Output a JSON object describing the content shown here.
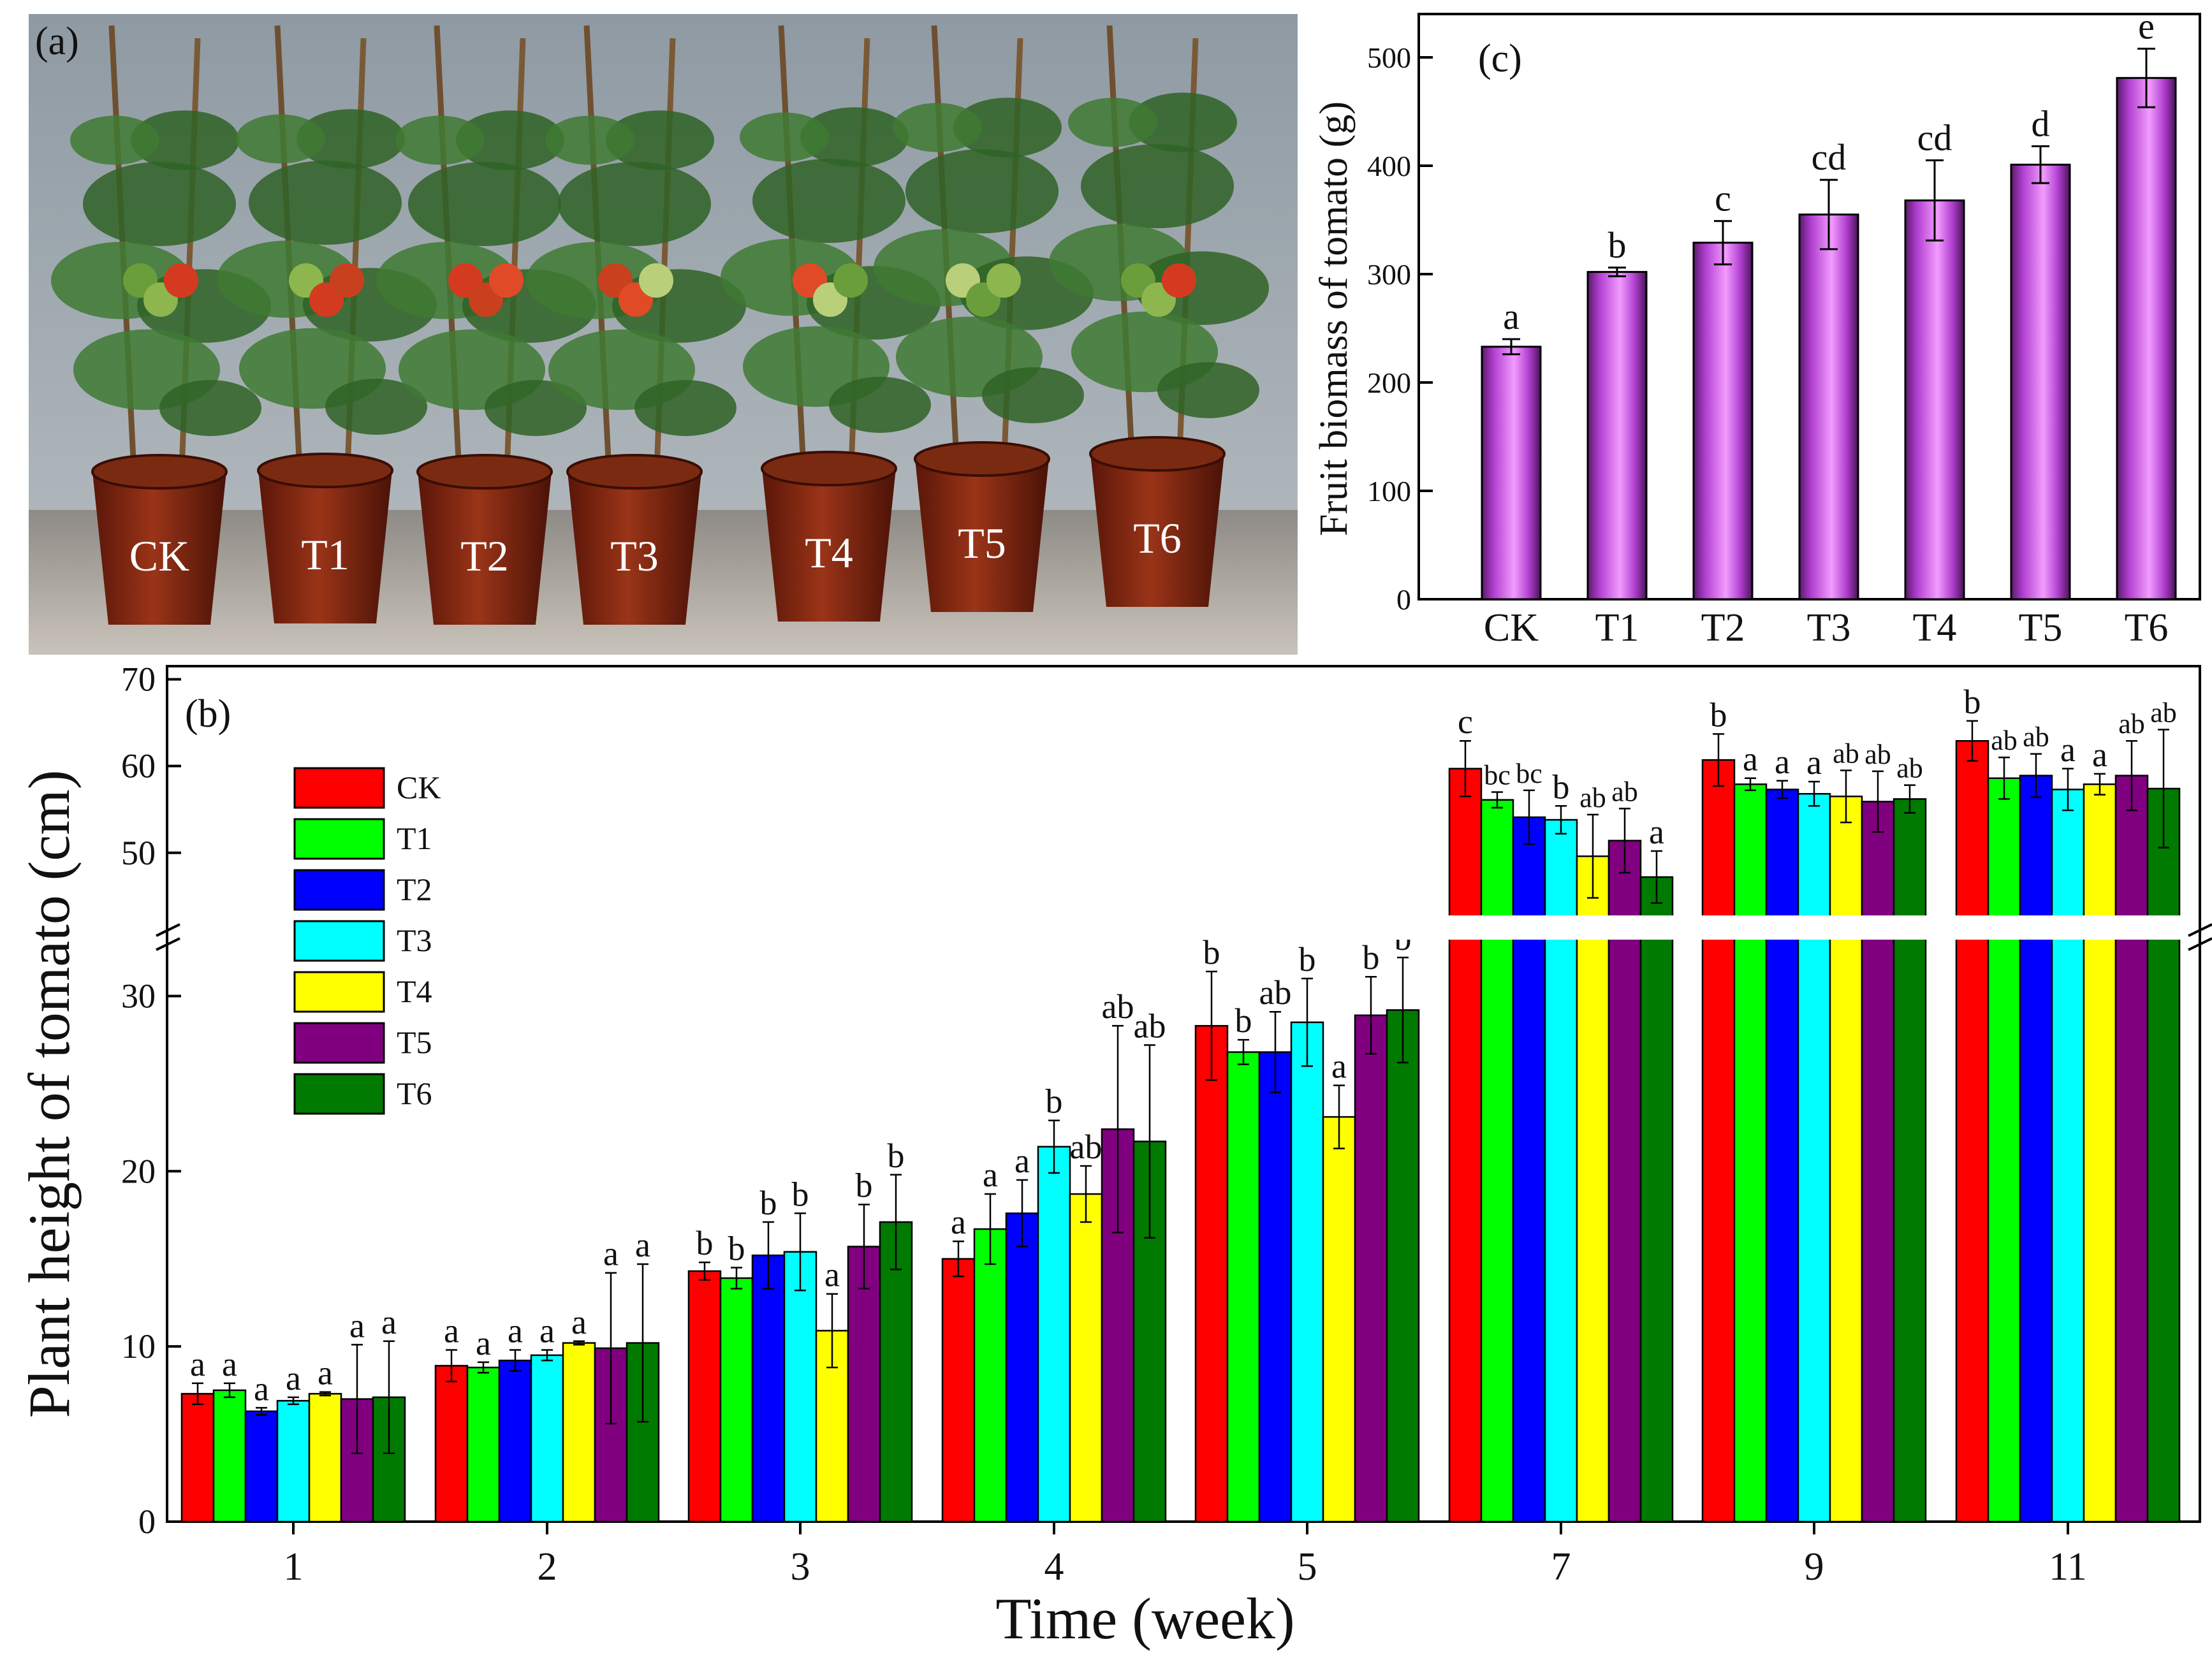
{
  "panels": {
    "a_label": "(a)",
    "b_label": "(b)",
    "c_label": "(c)"
  },
  "photo": {
    "pot_labels": [
      "CK",
      "T1",
      "T2",
      "T3",
      "T4",
      "T5",
      "T6"
    ]
  },
  "colors": {
    "CK": "#ff0000",
    "T1": "#00ff00",
    "T2": "#0000ff",
    "T3": "#00ffff",
    "T4": "#ffff00",
    "T5": "#800080",
    "T6": "#007a00",
    "biomass_bar": "#d65cf5"
  },
  "chart_data": [
    {
      "type": "bar",
      "id": "c",
      "title": "",
      "xlabel": "",
      "ylabel": "Fruit biomass of tomato (g)",
      "categories": [
        "CK",
        "T1",
        "T2",
        "T3",
        "T4",
        "T5",
        "T6"
      ],
      "values": [
        233,
        302,
        329,
        355,
        368,
        401,
        481
      ],
      "errors": [
        7,
        4,
        20,
        32,
        37,
        17,
        27
      ],
      "significance": [
        "a",
        "b",
        "c",
        "cd",
        "cd",
        "d",
        "e"
      ],
      "ylim": [
        0,
        540
      ],
      "yticks": [
        0,
        100,
        200,
        300,
        400,
        500
      ]
    },
    {
      "type": "bar",
      "id": "b",
      "title": "",
      "xlabel": "Time (week)",
      "ylabel": "Plant height of tomato (cm)",
      "categories": [
        "1",
        "2",
        "3",
        "4",
        "5",
        "7",
        "9",
        "11"
      ],
      "axis_break": {
        "lower_range": [
          0,
          33
        ],
        "upper_range": [
          43,
          71
        ]
      },
      "lower_yticks": [
        0,
        10,
        20,
        30
      ],
      "upper_yticks": [
        50,
        60,
        70
      ],
      "legend": [
        "CK",
        "T1",
        "T2",
        "T3",
        "T4",
        "T5",
        "T6"
      ],
      "series": [
        {
          "name": "CK",
          "values": [
            7.3,
            8.9,
            14.3,
            15.0,
            28.3,
            59.7,
            60.7,
            62.9
          ],
          "errors": [
            0.6,
            0.9,
            0.5,
            1.0,
            3.1,
            3.2,
            3.0,
            2.3
          ],
          "significance": [
            "a",
            "a",
            "b",
            "a",
            "b",
            "c",
            "b",
            "b"
          ]
        },
        {
          "name": "T1",
          "values": [
            7.5,
            8.8,
            13.9,
            16.7,
            26.8,
            56.1,
            57.9,
            58.6
          ],
          "errors": [
            0.4,
            0.3,
            0.6,
            2.0,
            0.7,
            0.9,
            0.7,
            2.4
          ],
          "significance": [
            "a",
            "a",
            "b",
            "a",
            "b",
            "bc",
            "a",
            "ab"
          ]
        },
        {
          "name": "T2",
          "values": [
            6.3,
            9.2,
            15.2,
            17.6,
            26.8,
            54.1,
            57.3,
            58.9
          ],
          "errors": [
            0.2,
            0.6,
            1.9,
            1.9,
            2.3,
            3.1,
            1.0,
            2.5
          ],
          "significance": [
            "a",
            "a",
            "b",
            "a",
            "ab",
            "bc",
            "a",
            "ab"
          ]
        },
        {
          "name": "T3",
          "values": [
            6.9,
            9.5,
            15.4,
            21.4,
            28.5,
            53.8,
            56.8,
            57.3
          ],
          "errors": [
            0.2,
            0.3,
            2.2,
            1.5,
            2.5,
            1.6,
            1.4,
            2.4
          ],
          "significance": [
            "a",
            "a",
            "b",
            "b",
            "b",
            "b",
            "a",
            "a"
          ]
        },
        {
          "name": "T4",
          "values": [
            7.3,
            10.2,
            10.9,
            18.7,
            23.1,
            49.6,
            56.5,
            57.9
          ],
          "errors": [
            0.1,
            0.1,
            2.1,
            1.6,
            1.8,
            4.8,
            3.0,
            1.2
          ],
          "significance": [
            "a",
            "a",
            "a",
            "ab",
            "a",
            "ab",
            "ab",
            "a"
          ]
        },
        {
          "name": "T5",
          "values": [
            7.0,
            9.9,
            15.7,
            22.4,
            28.9,
            51.4,
            55.9,
            58.9
          ],
          "errors": [
            3.1,
            4.3,
            2.4,
            5.9,
            2.2,
            3.7,
            3.5,
            4.0
          ],
          "significance": [
            "a",
            "a",
            "b",
            "ab",
            "b",
            "ab",
            "ab",
            "ab"
          ]
        },
        {
          "name": "T6",
          "values": [
            7.1,
            10.2,
            17.1,
            21.7,
            29.2,
            47.2,
            56.2,
            57.4
          ],
          "errors": [
            3.2,
            4.5,
            2.7,
            5.5,
            3.0,
            3.0,
            1.6,
            6.8
          ],
          "significance": [
            "a",
            "a",
            "b",
            "ab",
            "b",
            "a",
            "ab",
            "ab"
          ]
        }
      ]
    }
  ]
}
